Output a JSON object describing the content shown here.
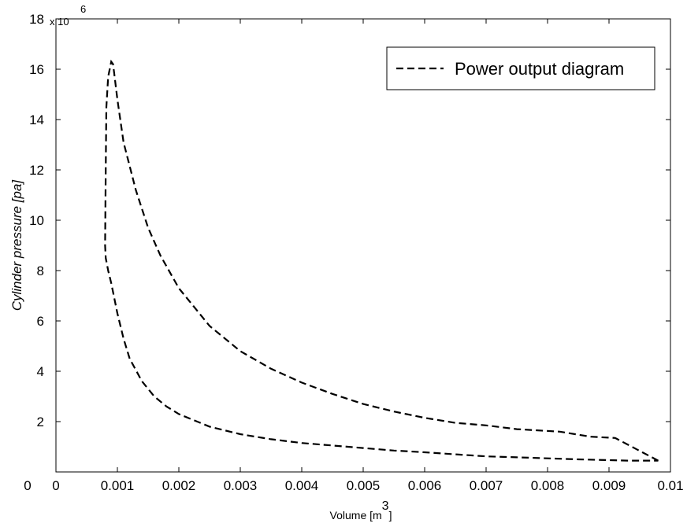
{
  "chart_data": {
    "type": "line",
    "title": "",
    "xlabel": "Volume [m",
    "xlabel_superscript": "3",
    "xlabel_suffix": "]",
    "ylabel": "Cylinder pressure [pa]",
    "y_exponent_base": "x 10",
    "y_exponent_power": "6",
    "xlim": [
      0,
      0.01
    ],
    "ylim": [
      0,
      18000000
    ],
    "x_ticks": [
      0,
      0.001,
      0.002,
      0.003,
      0.004,
      0.005,
      0.006,
      0.007,
      0.008,
      0.009,
      0.01
    ],
    "x_tick_labels": [
      "0",
      "0.001",
      "0.002",
      "0.003",
      "0.004",
      "0.005",
      "0.006",
      "0.007",
      "0.008",
      "0.009",
      "0.01"
    ],
    "x_extra_label": "0",
    "y_ticks": [
      0,
      2000000,
      4000000,
      6000000,
      8000000,
      10000000,
      12000000,
      14000000,
      16000000,
      18000000
    ],
    "y_tick_labels": [
      "0",
      "2",
      "4",
      "6",
      "8",
      "10",
      "12",
      "14",
      "16",
      "18"
    ],
    "grid": false,
    "legend_position": "top-right",
    "line_style": "dashed",
    "line_color": "#000000",
    "series": [
      {
        "name": "Power output diagram",
        "x": [
          0.0098,
          0.0091,
          0.0087,
          0.0082,
          0.0075,
          0.007,
          0.0065,
          0.006,
          0.0055,
          0.005,
          0.0045,
          0.004,
          0.0035,
          0.003,
          0.0025,
          0.002,
          0.0017,
          0.0015,
          0.0013,
          0.0011,
          0.001,
          0.00095,
          0.00093,
          0.0009,
          0.00085,
          0.00082,
          0.00081,
          0.0008,
          0.00081,
          0.00085,
          0.0009,
          0.001,
          0.0011,
          0.0012,
          0.0014,
          0.0016,
          0.0018,
          0.002,
          0.0025,
          0.003,
          0.0035,
          0.004,
          0.0045,
          0.005,
          0.0055,
          0.006,
          0.0065,
          0.007,
          0.0075,
          0.008,
          0.0085,
          0.009,
          0.0093,
          0.0096,
          0.0098
        ],
        "y": [
          450000,
          1350000,
          1400000,
          1600000,
          1700000,
          1850000,
          1950000,
          2150000,
          2400000,
          2700000,
          3100000,
          3550000,
          4100000,
          4800000,
          5800000,
          7300000,
          8600000,
          9700000,
          11200000,
          13100000,
          14800000,
          15800000,
          16200000,
          16300000,
          15700000,
          14500000,
          12000000,
          9000000,
          8500000,
          8000000,
          7500000,
          6300000,
          5300000,
          4500000,
          3600000,
          3000000,
          2600000,
          2300000,
          1800000,
          1500000,
          1300000,
          1150000,
          1050000,
          950000,
          850000,
          780000,
          700000,
          620000,
          580000,
          540000,
          500000,
          470000,
          450000,
          450000,
          450000
        ]
      }
    ]
  }
}
